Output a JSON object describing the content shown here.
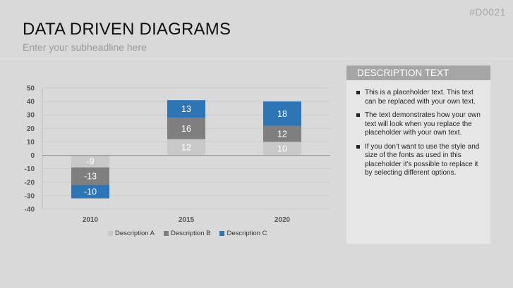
{
  "slide": {
    "id_label": "#D0021",
    "title": "DATA DRIVEN DIAGRAMS",
    "subtitle": "Enter your subheadline here"
  },
  "description": {
    "header": "DESCRIPTION TEXT",
    "items": [
      "This is a placeholder text. This text can be replaced with your own text.",
      "The text demonstrates how your own text will look when you replace the placeholder with your own text.",
      "If you don’t want to use the style and size of the fonts as used in this placeholder it’s possible to replace it by selecting different options."
    ]
  },
  "colors": {
    "description_a": "#c8c8c8",
    "description_b": "#7f7f7f",
    "description_c": "#2e75b6"
  },
  "chart_data": {
    "type": "bar",
    "stacked": true,
    "categories": [
      "2010",
      "2015",
      "2020"
    ],
    "series": [
      {
        "name": "Description A",
        "values": [
          -9,
          12,
          10
        ]
      },
      {
        "name": "Description B",
        "values": [
          -13,
          16,
          12
        ]
      },
      {
        "name": "Description C",
        "values": [
          -10,
          13,
          18
        ]
      }
    ],
    "yticks": [
      "50",
      "40",
      "30",
      "20",
      "10",
      "0",
      "-10",
      "-20",
      "-30",
      "-40"
    ],
    "ylim": [
      -40,
      50
    ],
    "grid": true,
    "legend": "bottom",
    "data_labels": true
  }
}
